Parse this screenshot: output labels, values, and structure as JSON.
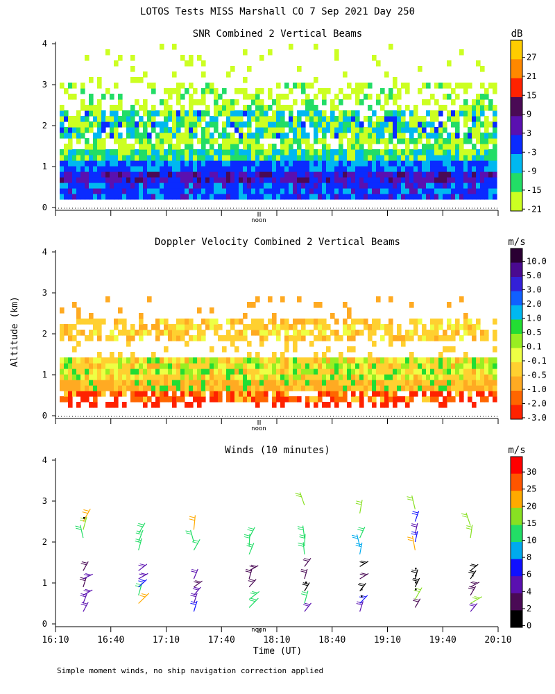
{
  "title": "LOTOS Tests MISS Marshall CO   7 Sep 2021 Day 250",
  "ylabel": "Altitude (km)",
  "xlabel": "Time (UT)",
  "noon_label": "noon",
  "footnote": "Simple moment winds, no ship navigation correction applied",
  "chart_data": [
    {
      "type": "heatmap",
      "title": "SNR Combined 2 Vertical Beams",
      "units": "dB",
      "ylim": [
        0,
        4
      ],
      "yticks": [
        0,
        1,
        2,
        3,
        4
      ],
      "colorbar_labels": [
        "27",
        "21",
        "15",
        "9",
        "3",
        "-3",
        "-9",
        "-15",
        "-21"
      ],
      "colors": [
        "#ffcc00",
        "#ff8800",
        "#ff2200",
        "#4a0a55",
        "#5a10b0",
        "#0a2bff",
        "#00b8f0",
        "#22dd66",
        "#ccff22"
      ],
      "note": "strong returns below ~1 km, moderate layer near 1.8-2.2 km, weak echoes up to ~3 km"
    },
    {
      "type": "heatmap",
      "title": "Doppler Velocity Combined 2 Vertical Beams",
      "units": "m/s",
      "ylim": [
        0,
        4
      ],
      "yticks": [
        0,
        1,
        2,
        3,
        4
      ],
      "colorbar_labels": [
        "10.0",
        "5.0",
        "3.0",
        "2.0",
        "1.0",
        "0.5",
        "0.1",
        "-0.1",
        "-0.5",
        "-1.0",
        "-2.0",
        "-3.0"
      ],
      "colors": [
        "#2a0033",
        "#4a0a90",
        "#3320d8",
        "#1060ff",
        "#00b8f0",
        "#22dd33",
        "#99ee22",
        "#eeff44",
        "#ffd030",
        "#ffaa22",
        "#ff6600",
        "#ff2200"
      ],
      "note": "mostly -0.1 to -1.0 m/s between 0.5-1.3 km and near 1.8-2.2 km"
    },
    {
      "type": "scatter",
      "title": "Winds (10 minutes)",
      "units": "m/s",
      "ylim": [
        0,
        4
      ],
      "yticks": [
        0,
        1,
        2,
        3,
        4
      ],
      "xlim": [
        "16:10",
        "20:10"
      ],
      "xticks": [
        "16:10",
        "16:40",
        "17:10",
        "17:40",
        "18:10",
        "18:40",
        "19:10",
        "19:40",
        "20:10"
      ],
      "colorbar_labels": [
        "30",
        "25",
        "20",
        "15",
        "10",
        "8",
        "6",
        "4",
        "2",
        "0"
      ],
      "colors": [
        "#ff0000",
        "#ff5500",
        "#ffaa00",
        "#88e022",
        "#22dd66",
        "#00aaee",
        "#1010ff",
        "#5a10b0",
        "#4a0a55",
        "#000000"
      ],
      "profile_times": [
        "16:25",
        "16:55",
        "17:25",
        "17:55",
        "18:25",
        "18:55",
        "19:25",
        "19:55"
      ],
      "series": [
        {
          "name": "profile-1",
          "x": "16:25",
          "altitudes_km": [
            0.3,
            0.5,
            0.7,
            0.9,
            1.1,
            1.3,
            2.1,
            2.3,
            2.5
          ],
          "speeds_ms": [
            4,
            5,
            4,
            3,
            4,
            3,
            14,
            15,
            22
          ]
        },
        {
          "name": "profile-2",
          "x": "16:55",
          "altitudes_km": [
            0.5,
            0.7,
            0.9,
            1.1,
            1.3,
            1.8,
            2.0,
            2.2
          ],
          "speeds_ms": [
            20,
            14,
            6,
            5,
            4,
            11,
            12,
            12
          ]
        },
        {
          "name": "profile-3",
          "x": "17:25",
          "altitudes_km": [
            0.3,
            0.5,
            0.7,
            0.9,
            1.1,
            1.8,
            2.0,
            2.3
          ],
          "speeds_ms": [
            6,
            5,
            4,
            3,
            4,
            11,
            11,
            21
          ]
        },
        {
          "name": "profile-4",
          "x": "17:55",
          "altitudes_km": [
            0.4,
            0.6,
            0.9,
            1.1,
            1.3,
            1.7,
            1.9,
            2.1
          ],
          "speeds_ms": [
            14,
            13,
            3,
            2,
            3,
            10,
            11,
            10
          ]
        },
        {
          "name": "profile-5",
          "x": "18:25",
          "altitudes_km": [
            0.3,
            0.5,
            0.8,
            1.1,
            1.4,
            1.7,
            1.9,
            2.1,
            2.9
          ],
          "speeds_ms": [
            5,
            14,
            1,
            2,
            3,
            10,
            10,
            11,
            16
          ]
        },
        {
          "name": "profile-6",
          "x": "18:55",
          "altitudes_km": [
            0.3,
            0.5,
            0.8,
            1.1,
            1.4,
            1.7,
            1.9,
            2.1,
            2.7
          ],
          "speeds_ms": [
            5,
            6,
            1,
            2,
            1,
            9,
            9,
            10,
            16
          ]
        },
        {
          "name": "profile-7",
          "x": "19:25",
          "altitudes_km": [
            0.4,
            0.6,
            0.9,
            1.1,
            1.8,
            2.0,
            2.2,
            2.5,
            2.8
          ],
          "speeds_ms": [
            2,
            16,
            1,
            0,
            22,
            6,
            5,
            6,
            18
          ]
        },
        {
          "name": "profile-8",
          "x": "19:55",
          "altitudes_km": [
            0.3,
            0.5,
            0.7,
            0.9,
            1.1,
            1.3,
            2.1,
            2.4
          ],
          "speeds_ms": [
            4,
            15,
            3,
            2,
            1,
            1,
            15,
            16
          ]
        }
      ]
    }
  ]
}
